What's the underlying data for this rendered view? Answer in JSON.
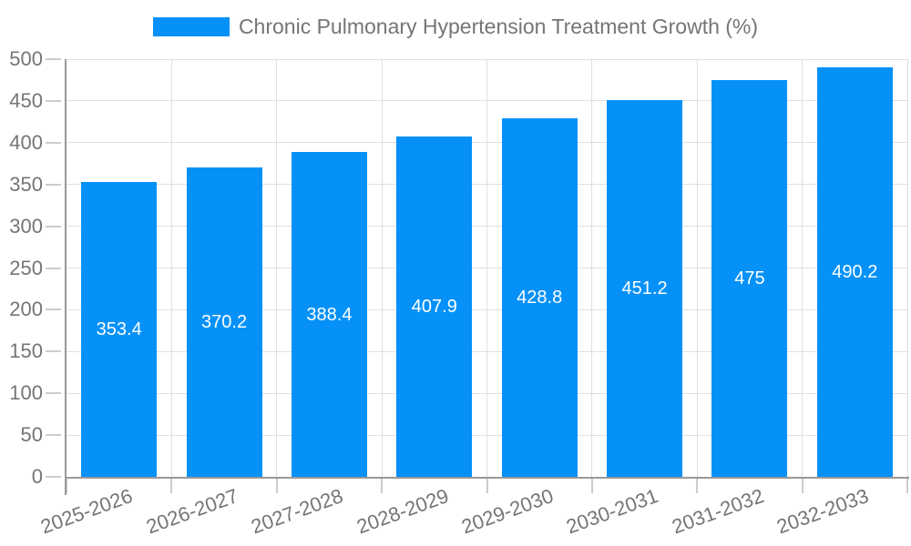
{
  "legend": {
    "label": "Chronic Pulmonary Hypertension Treatment Growth (%)"
  },
  "chart_data": {
    "type": "bar",
    "title": "Chronic Pulmonary Hypertension Treatment Growth (%)",
    "categories": [
      "2025-2026",
      "2026-2027",
      "2027-2028",
      "2028-2029",
      "2029-2030",
      "2030-2031",
      "2031-2032",
      "2032-2033"
    ],
    "values": [
      353.4,
      370.2,
      388.4,
      407.9,
      428.8,
      451.2,
      475,
      490.2
    ],
    "value_labels": [
      "353.4",
      "370.2",
      "388.4",
      "407.9",
      "428.8",
      "451.2",
      "475",
      "490.2"
    ],
    "xlabel": "",
    "ylabel": "",
    "ylim": [
      0,
      500
    ],
    "ytick_step": 50,
    "ytick_labels": [
      "0",
      "50",
      "100",
      "150",
      "200",
      "250",
      "300",
      "350",
      "400",
      "450",
      "500"
    ],
    "grid": true,
    "legend_position": "top"
  },
  "colors": {
    "bar": "#0591f8",
    "grid": "#e0e0e0",
    "axis": "#999999",
    "tick": "#cccccc",
    "text": "#757575",
    "value_text": "#ffffff",
    "background": "#ffffff"
  }
}
